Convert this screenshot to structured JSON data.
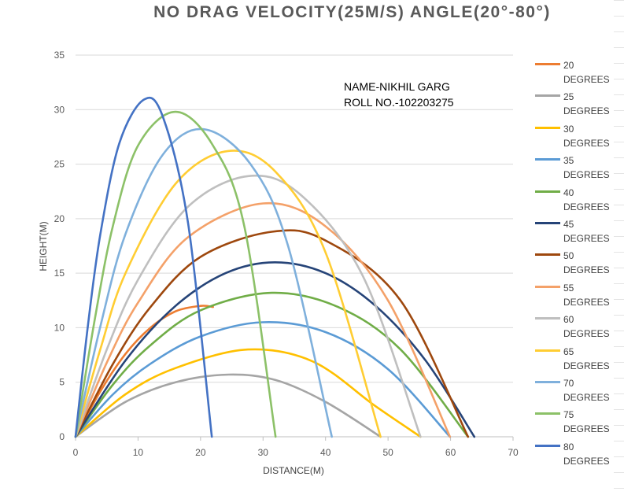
{
  "chart_data": {
    "type": "line",
    "title": "NO DRAG VELOCITY(25M/S) ANGLE(20°-80°)",
    "xlabel": "DISTANCE(M)",
    "ylabel": "HEIGHT(M)",
    "xlim": [
      0,
      70
    ],
    "ylim": [
      0,
      35
    ],
    "xticks": [
      "0",
      "10",
      "20",
      "30",
      "40",
      "50",
      "60",
      "70"
    ],
    "yticks": [
      "0",
      "5",
      "10",
      "15",
      "20",
      "25",
      "30",
      "35"
    ],
    "grid": "horizontal",
    "legend": "right",
    "annotation": [
      "NAME-NIKHIL GARG",
      "ROLL NO.-102203275"
    ],
    "series": [
      {
        "name": "20 DEGREES",
        "color": "#ED7D31",
        "x": [
          0,
          4,
          8,
          12,
          16,
          20,
          22
        ],
        "y": [
          0,
          4.2,
          7.6,
          10.0,
          11.5,
          12.0,
          11.9
        ]
      },
      {
        "name": "25 DEGREES",
        "color": "#A5A5A5",
        "x": [
          0,
          8,
          16,
          24.5,
          32,
          40,
          48.8
        ],
        "y": [
          0,
          3.2,
          5.0,
          5.7,
          5.2,
          3.2,
          0
        ]
      },
      {
        "name": "30 DEGREES",
        "color": "#FFC000",
        "x": [
          0,
          8,
          16,
          27.6,
          38,
          48,
          55.2
        ],
        "y": [
          0,
          3.9,
          6.3,
          8.0,
          6.9,
          2.8,
          0
        ]
      },
      {
        "name": "35 DEGREES",
        "color": "#5B9BD5",
        "x": [
          0,
          6,
          12,
          20,
          29.9,
          40,
          50,
          59.9
        ],
        "y": [
          0,
          3.9,
          6.7,
          9.2,
          10.5,
          9.6,
          6.2,
          0
        ]
      },
      {
        "name": "40 DEGREES",
        "color": "#70AD47",
        "x": [
          0,
          6,
          12,
          20,
          31.4,
          42,
          52,
          62.8
        ],
        "y": [
          0,
          4.8,
          8.4,
          11.6,
          13.2,
          11.9,
          8.0,
          0
        ]
      },
      {
        "name": "45 DEGREES",
        "color": "#264478",
        "x": [
          0,
          8,
          16,
          24,
          31.9,
          40,
          48,
          56,
          63.8
        ],
        "y": [
          0,
          7.0,
          12.0,
          15.0,
          16.0,
          15.0,
          12.0,
          7.0,
          0
        ]
      },
      {
        "name": "50 DEGREES",
        "color": "#9E480E",
        "x": [
          0,
          6,
          12,
          20,
          31.4,
          40,
          52,
          62.8
        ],
        "y": [
          0,
          6.7,
          11.9,
          16.5,
          18.8,
          18.0,
          12.5,
          0
        ]
      },
      {
        "name": "55 DEGREES",
        "color": "#F4A169",
        "x": [
          0,
          5,
          10,
          18,
          30.0,
          40,
          50,
          59.9
        ],
        "y": [
          0,
          6.8,
          12.3,
          18.3,
          21.4,
          19.3,
          12.5,
          0
        ]
      },
      {
        "name": "60 DEGREES",
        "color": "#BFBFBF",
        "x": [
          0,
          5,
          10,
          18,
          27.6,
          36,
          46,
          55.2
        ],
        "y": [
          0,
          8.0,
          14.4,
          21.1,
          23.9,
          22.2,
          14.7,
          0
        ]
      },
      {
        "name": "65 DEGREES",
        "color": "#FFCD33",
        "x": [
          0,
          4,
          8,
          16,
          24.4,
          32,
          40,
          48.8
        ],
        "y": [
          0,
          8.1,
          15.0,
          23.2,
          26.2,
          24.3,
          16.9,
          0
        ]
      },
      {
        "name": "70 DEGREES",
        "color": "#7FB0DC",
        "x": [
          0,
          4,
          8,
          14,
          20.5,
          28,
          34,
          41.0
        ],
        "y": [
          0,
          10.2,
          18.6,
          25.9,
          28.2,
          25.0,
          17.5,
          0
        ]
      },
      {
        "name": "75 DEGREES",
        "color": "#8CC168",
        "x": [
          0,
          3,
          6,
          10,
          16.0,
          22,
          27,
          32.0
        ],
        "y": [
          0,
          10.5,
          19.4,
          26.7,
          29.8,
          26.7,
          19.3,
          0
        ]
      },
      {
        "name": "80 DEGREES",
        "color": "#4472C4",
        "x": [
          0,
          2,
          4,
          7,
          10.9,
          14,
          18,
          21.8
        ],
        "y": [
          0,
          10.3,
          18.7,
          26.9,
          30.9,
          29.3,
          19.6,
          0
        ]
      }
    ]
  }
}
